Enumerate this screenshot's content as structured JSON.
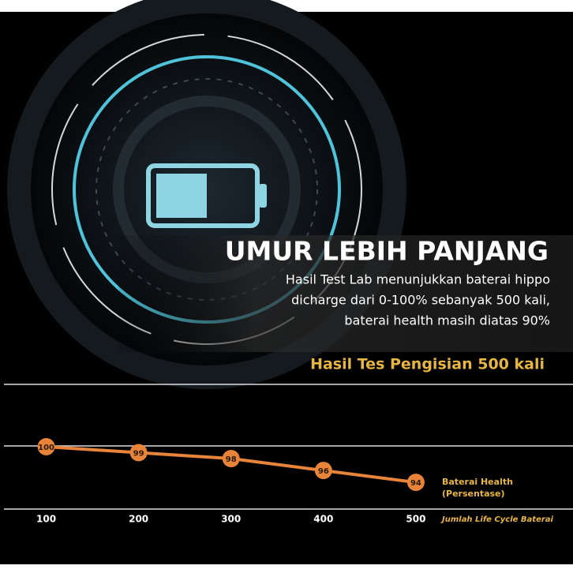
{
  "banner": {
    "title": "UMUR LEBIH PANJANG",
    "description": [
      "Hasil Test Lab menunjukkan baterai hippo",
      "dicharge dari  0-100% sebanyak 500 kali,",
      "baterai health masih diatas 90%"
    ]
  },
  "chart_data": {
    "type": "line",
    "title": "Hasil Tes Pengisian 500 kali",
    "x": [
      100,
      200,
      300,
      400,
      500
    ],
    "series": [
      {
        "name": "Baterai Health (Persentase)",
        "color": "#e8843a",
        "values": [
          100,
          99,
          98,
          96,
          94
        ]
      }
    ],
    "x_label": "Jumlah Life Cycle Baterai",
    "xlim": [
      50,
      670
    ],
    "xticks": [
      100,
      200,
      300,
      400,
      500
    ],
    "ylim": [
      89.5,
      110.5
    ]
  }
}
